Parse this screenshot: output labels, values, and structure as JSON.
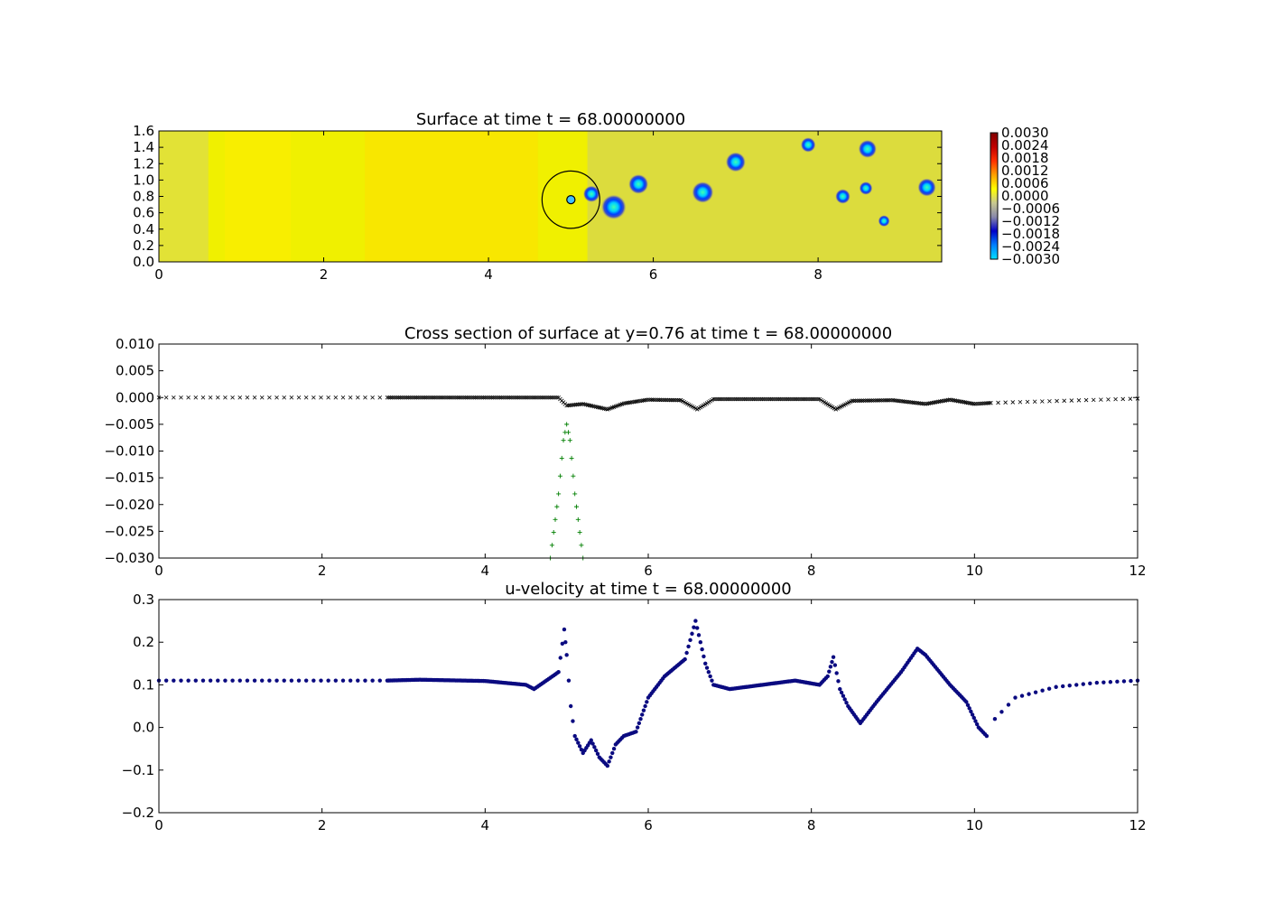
{
  "chart_data": [
    {
      "type": "heatmap",
      "title": "Surface at time t =    68.00000000",
      "xlim": [
        0,
        9.5
      ],
      "ylim": [
        0,
        1.6
      ],
      "xticks": [
        "0",
        "2",
        "4",
        "6",
        "8"
      ],
      "yticks": [
        "0.0",
        "0.2",
        "0.4",
        "0.6",
        "0.8",
        "1.0",
        "1.2",
        "1.4",
        "1.6"
      ],
      "colorbar_ticks": [
        "0.0030",
        "0.0024",
        "0.0018",
        "0.0012",
        "0.0006",
        "0.0000",
        "−0.0006",
        "−0.0012",
        "−0.0018",
        "−0.0024",
        "−0.0030"
      ],
      "colorbar_range": [
        -0.003,
        0.003
      ],
      "colormap": [
        "#00e0ff",
        "#0080ff",
        "#0000c8",
        "#8888aa",
        "#c8c890",
        "#ffff00",
        "#ffa000",
        "#ff3000",
        "#c00000",
        "#800000"
      ],
      "background_value": 0.0002,
      "circle": {
        "center": [
          5.0,
          0.76
        ],
        "radius": 0.35,
        "inner_radius": 0.05
      },
      "vortices": [
        {
          "x": 5.25,
          "y": 0.83,
          "r": 0.1
        },
        {
          "x": 5.52,
          "y": 0.67,
          "r": 0.15
        },
        {
          "x": 5.82,
          "y": 0.95,
          "r": 0.12
        },
        {
          "x": 6.6,
          "y": 0.85,
          "r": 0.13
        },
        {
          "x": 7.0,
          "y": 1.22,
          "r": 0.12
        },
        {
          "x": 7.88,
          "y": 1.43,
          "r": 0.09
        },
        {
          "x": 8.3,
          "y": 0.8,
          "r": 0.09
        },
        {
          "x": 8.58,
          "y": 0.9,
          "r": 0.08
        },
        {
          "x": 8.6,
          "y": 1.38,
          "r": 0.11
        },
        {
          "x": 9.32,
          "y": 0.91,
          "r": 0.11
        },
        {
          "x": 8.8,
          "y": 0.5,
          "r": 0.07
        }
      ]
    },
    {
      "type": "scatter",
      "title": "Cross section of surface at y=0.76 at time t =    68.00000000",
      "xlim": [
        0,
        12
      ],
      "ylim": [
        -0.03,
        0.01
      ],
      "xticks": [
        "0",
        "2",
        "4",
        "6",
        "8",
        "10",
        "12"
      ],
      "yticks": [
        "0.010",
        "0.005",
        "0.000",
        "−0.005",
        "−0.010",
        "−0.015",
        "−0.020",
        "−0.025",
        "−0.030"
      ],
      "series": [
        {
          "marker": "x",
          "color": "#000000",
          "x": [
            0,
            2.8,
            4.5,
            4.9,
            5.0,
            5.2,
            5.5,
            5.7,
            6.0,
            6.4,
            6.6,
            6.8,
            7.5,
            8.1,
            8.3,
            8.5,
            9.0,
            9.4,
            9.7,
            10.0,
            10.2,
            12
          ],
          "y": [
            0.0,
            0.0,
            0.0,
            0.0,
            -0.0015,
            -0.0012,
            -0.0022,
            -0.0011,
            -0.0004,
            -0.0005,
            -0.0022,
            -0.0003,
            -0.0003,
            -0.0003,
            -0.0022,
            -0.0006,
            -0.0005,
            -0.0012,
            -0.0004,
            -0.0012,
            -0.001,
            -0.0002
          ]
        },
        {
          "marker": "+",
          "color": "#007f00",
          "x": [
            4.8,
            4.9,
            4.96,
            5.0,
            5.04,
            5.1,
            5.2
          ],
          "y": [
            -0.03,
            -0.018,
            -0.008,
            -0.005,
            -0.008,
            -0.018,
            -0.03
          ]
        }
      ]
    },
    {
      "type": "scatter",
      "title": "u-velocity at time t =    68.00000000",
      "xlim": [
        0,
        12
      ],
      "ylim": [
        -0.2,
        0.3
      ],
      "xticks": [
        "0",
        "2",
        "4",
        "6",
        "8",
        "10",
        "12"
      ],
      "yticks": [
        "0.3",
        "0.2",
        "0.1",
        "0.0",
        "−0.1",
        "−0.2"
      ],
      "series": [
        {
          "marker": "o",
          "color": "#0a0a80",
          "x": [
            0,
            2.8,
            3.2,
            4.0,
            4.5,
            4.6,
            4.9,
            4.97,
            5.0,
            5.05,
            5.1,
            5.2,
            5.3,
            5.4,
            5.5,
            5.6,
            5.7,
            5.85,
            6.0,
            6.2,
            6.45,
            6.58,
            6.7,
            6.8,
            7.0,
            7.4,
            7.8,
            8.1,
            8.2,
            8.27,
            8.35,
            8.45,
            8.6,
            8.8,
            9.1,
            9.3,
            9.4,
            9.7,
            9.9,
            10.05,
            10.15,
            10.25,
            10.5,
            11.0,
            11.5,
            12.0
          ],
          "y": [
            0.11,
            0.11,
            0.112,
            0.109,
            0.1,
            0.09,
            0.13,
            0.23,
            0.17,
            0.05,
            -0.02,
            -0.06,
            -0.03,
            -0.07,
            -0.09,
            -0.04,
            -0.02,
            -0.01,
            0.07,
            0.12,
            0.16,
            0.25,
            0.15,
            0.1,
            0.09,
            0.1,
            0.11,
            0.1,
            0.12,
            0.165,
            0.09,
            0.05,
            0.01,
            0.06,
            0.13,
            0.185,
            0.17,
            0.1,
            0.06,
            0.0,
            -0.02,
            0.02,
            0.07,
            0.095,
            0.105,
            0.11
          ]
        }
      ]
    }
  ]
}
